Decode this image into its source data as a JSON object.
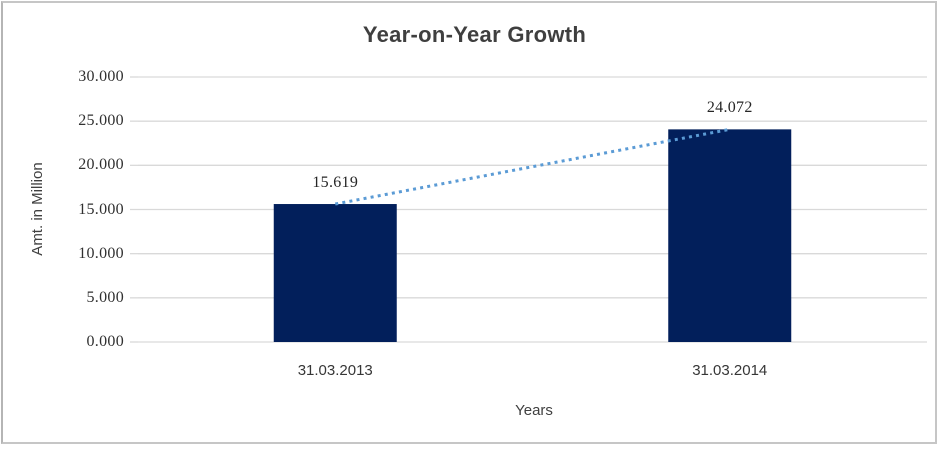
{
  "chart_data": {
    "type": "bar",
    "title": "Year-on-Year Growth",
    "xlabel": "Years",
    "ylabel": "Amt. in Million",
    "categories": [
      "31.03.2013",
      "31.03.2014"
    ],
    "series": [
      {
        "name": "Amount",
        "type": "bar",
        "values": [
          15.619,
          24.072
        ],
        "color": "#021f5b"
      },
      {
        "name": "Trend",
        "type": "line",
        "style": "dotted",
        "values": [
          15.619,
          24.072
        ],
        "color": "#5b9bd5"
      }
    ],
    "data_labels": [
      "15.619",
      "24.072"
    ],
    "ylim": [
      0,
      30
    ],
    "ytick_step": 5,
    "ytick_labels": [
      "0.000",
      "5.000",
      "10.000",
      "15.000",
      "20.000",
      "25.000",
      "30.000"
    ],
    "grid": true,
    "legend": "none",
    "colors": {
      "bar": "#021f5b",
      "trendline": "#5b9bd5",
      "gridline": "#d9d9d9",
      "text": "#3f3f3f",
      "frame_border": "#c6c6c6"
    }
  }
}
